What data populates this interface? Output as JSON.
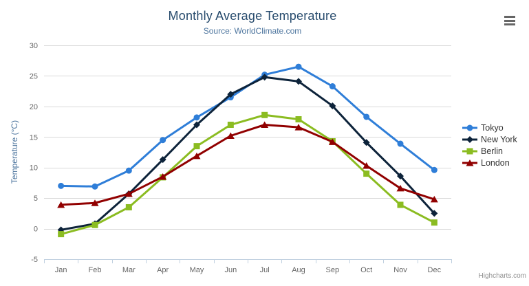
{
  "chart": {
    "credits_label": "Highcharts.com",
    "menu_icon": "hamburger-icon"
  },
  "colors": {
    "background": "#ffffff",
    "title": "#274b6d",
    "subtitle": "#4d759e",
    "axis_title": "#4d759e",
    "axis_labels": "#666666",
    "gridline": "#d8d8d8",
    "axis_line": "#c0d0e0",
    "legend_text": "#333333",
    "credits": "#909090",
    "menu_icon": "#666666"
  },
  "chart_data": {
    "type": "line",
    "title": "Monthly Average Temperature",
    "subtitle": "Source: WorldClimate.com",
    "xlabel": "",
    "ylabel": "Temperature (°C)",
    "categories": [
      "Jan",
      "Feb",
      "Mar",
      "Apr",
      "May",
      "Jun",
      "Jul",
      "Aug",
      "Sep",
      "Oct",
      "Nov",
      "Dec"
    ],
    "ylim": [
      -5,
      30
    ],
    "ytick_step": 5,
    "grid": true,
    "legend_position": "right",
    "series": [
      {
        "name": "Tokyo",
        "color": "#2f7ed8",
        "marker": "circle",
        "values": [
          7.0,
          6.9,
          9.5,
          14.5,
          18.2,
          21.5,
          25.2,
          26.5,
          23.3,
          18.3,
          13.9,
          9.6
        ]
      },
      {
        "name": "New York",
        "color": "#0d233a",
        "marker": "diamond",
        "values": [
          -0.2,
          0.8,
          5.7,
          11.3,
          17.0,
          22.0,
          24.8,
          24.1,
          20.1,
          14.1,
          8.6,
          2.5
        ]
      },
      {
        "name": "Berlin",
        "color": "#8bbc21",
        "marker": "square",
        "values": [
          -0.9,
          0.6,
          3.5,
          8.4,
          13.5,
          17.0,
          18.6,
          17.9,
          14.3,
          9.0,
          3.9,
          1.0
        ]
      },
      {
        "name": "London",
        "color": "#910000",
        "marker": "triangle",
        "values": [
          3.9,
          4.2,
          5.7,
          8.5,
          11.9,
          15.2,
          17.0,
          16.6,
          14.2,
          10.3,
          6.6,
          4.8
        ]
      }
    ]
  }
}
